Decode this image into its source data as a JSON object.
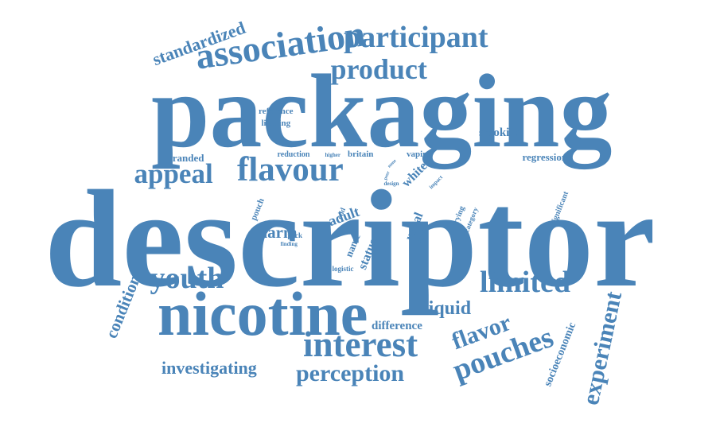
{
  "cloud": {
    "color": "#4a84b8",
    "words": {
      "descriptor": "descriptor",
      "packaging": "packaging",
      "nicotine": "nicotine",
      "interest": "interest",
      "flavour": "flavour",
      "association": "association",
      "participant": "participant",
      "product": "product",
      "appeal": "appeal",
      "youth": "youth",
      "limited": "limited",
      "pouches": "pouches",
      "flavor": "flavor",
      "perception": "perception",
      "experiment": "experiment",
      "standardized": "standardized",
      "investigating": "investigating",
      "liquid": "liquid",
      "condition": "condition",
      "difference": "difference",
      "smoking": "smoking",
      "regression": "regression",
      "branded": "branded",
      "reference": "reference",
      "limiting": "limiting",
      "reduction": "reduction",
      "higher": "higher",
      "britain": "britain",
      "vaping": "vaping",
      "harm": "harm",
      "adult": "adult",
      "pouch": "pouch",
      "pack": "pack",
      "finding": "finding",
      "odd": "odd",
      "code": "code",
      "name": "name",
      "status": "status",
      "logistic": "logistic",
      "usual": "usual",
      "great": "great",
      "white": "white",
      "design": "design",
      "peer": "peer",
      "none": "none",
      "impact": "impact",
      "trying": "trying",
      "category": "category",
      "significant": "significant",
      "socioeconomic": "socioeconomic"
    }
  }
}
